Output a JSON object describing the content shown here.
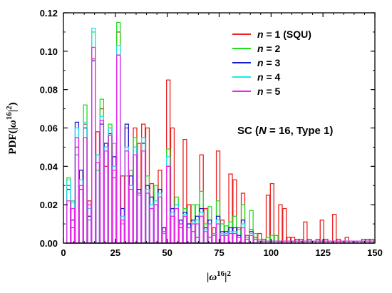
{
  "chart_data": {
    "type": "bar",
    "xlabel_parts": [
      "|",
      "ω",
      "16",
      "|",
      "2"
    ],
    "ylabel_parts": [
      "PDF(|",
      "ω",
      "16",
      "|",
      "2",
      ")"
    ],
    "xlim": [
      0,
      150
    ],
    "ylim": [
      0,
      0.12
    ],
    "xticks": [
      0,
      25,
      50,
      75,
      100,
      125,
      150
    ],
    "xtick_labels": [
      "0",
      "25",
      "50",
      "75",
      "100",
      "125",
      "150"
    ],
    "yticks": [
      0.0,
      0.02,
      0.04,
      0.06,
      0.08,
      0.1,
      0.12
    ],
    "ytick_labels": [
      "0.00",
      "0.02",
      "0.04",
      "0.06",
      "0.08",
      "0.10",
      "0.12"
    ],
    "grid": false,
    "legend_position": "top-right",
    "annotation": {
      "prefix": "SC (",
      "italic": "N",
      "suffix": " = 16, Type 1)"
    },
    "x": [
      2.5,
      4.5,
      6.5,
      8.5,
      10.5,
      12.5,
      14.5,
      16.5,
      18.5,
      20.5,
      22.5,
      24.5,
      26.5,
      28.5,
      30.5,
      32.5,
      34.5,
      36.5,
      38.5,
      40.5,
      42.5,
      44.5,
      46.5,
      48.5,
      50.5,
      52.5,
      54.5,
      56.5,
      58.5,
      60.5,
      62.5,
      64.5,
      66.5,
      68.5,
      70.5,
      72.5,
      74.5,
      76.5,
      78.5,
      80.5,
      82.5,
      84.5,
      86.5,
      88.5,
      90.5,
      92.5,
      94.5,
      96.5,
      98.5,
      100.5,
      102.5,
      104.5,
      106.5,
      108.5,
      110.5,
      112.5,
      114.5,
      116.5,
      118.5,
      120.5,
      122.5,
      124.5,
      126.5,
      128.5,
      130.5,
      132.5,
      134.5,
      136.5,
      138.5,
      140.5,
      142.5,
      144.5,
      146.5,
      148.5
    ],
    "series": [
      {
        "name": "n = 1 (SQU)",
        "label_italic": "n",
        "label_rest": " = 1 (SQU)",
        "color": "#e8201e",
        "values": [
          0.03,
          0.008,
          0.05,
          0.028,
          0.062,
          0.022,
          0.096,
          0.058,
          0.07,
          0.04,
          0.06,
          0.034,
          0.11,
          0.035,
          0.06,
          0.03,
          0.06,
          0.052,
          0.062,
          0.06,
          0.031,
          0.02,
          0.038,
          0.008,
          0.085,
          0.06,
          0.02,
          0.008,
          0.054,
          0.02,
          0.006,
          0.003,
          0.046,
          0.018,
          0.003,
          0.008,
          0.048,
          0.012,
          0.005,
          0.036,
          0.033,
          0.008,
          0.026,
          0.004,
          0.007,
          0.003,
          0.005,
          0.002,
          0.025,
          0.031,
          0.004,
          0.02,
          0.018,
          0.003,
          0.003,
          0.002,
          0.002,
          0.011,
          0.002,
          0.001,
          0.002,
          0.012,
          0.002,
          0.001,
          0.015,
          0.002,
          0.001,
          0.003,
          0.001,
          0.001,
          0.001,
          0.002,
          0.002,
          0.002
        ]
      },
      {
        "name": "n = 2",
        "label_italic": "n",
        "label_rest": " = 2",
        "color": "#22dd22",
        "values": [
          0.034,
          0.022,
          0.046,
          0.038,
          0.072,
          0.012,
          0.11,
          0.038,
          0.075,
          0.05,
          0.062,
          0.052,
          0.115,
          0.01,
          0.035,
          0.038,
          0.055,
          0.025,
          0.055,
          0.035,
          0.018,
          0.03,
          0.028,
          0.005,
          0.049,
          0.018,
          0.024,
          0.012,
          0.018,
          0.01,
          0.02,
          0.02,
          0.027,
          0.01,
          0.019,
          0.005,
          0.022,
          0.01,
          0.009,
          0.011,
          0.014,
          0.007,
          0.02,
          0.003,
          0.017,
          0.005,
          0.002,
          0.001,
          0.003,
          0.004,
          0.004,
          0.001,
          0.001,
          0.001,
          0.001,
          0.001,
          0.001,
          0.001,
          0.001,
          0.001,
          0.001,
          0.001,
          0.001,
          0.001,
          0.001,
          0.001,
          0.001,
          0.001,
          0.001,
          0.001,
          0.001,
          0.001,
          0.001,
          0.001
        ]
      },
      {
        "name": "n = 3",
        "label_italic": "n",
        "label_rest": " = 3",
        "color": "#1a1ad0",
        "values": [
          0.028,
          0.012,
          0.063,
          0.038,
          0.06,
          0.014,
          0.095,
          0.046,
          0.062,
          0.052,
          0.057,
          0.045,
          0.098,
          0.018,
          0.062,
          0.035,
          0.05,
          0.028,
          0.052,
          0.03,
          0.024,
          0.02,
          0.028,
          0.008,
          0.04,
          0.018,
          0.02,
          0.012,
          0.016,
          0.01,
          0.012,
          0.014,
          0.018,
          0.008,
          0.012,
          0.004,
          0.014,
          0.006,
          0.006,
          0.008,
          0.008,
          0.004,
          0.012,
          0.002,
          0.006,
          0.002,
          0.001,
          0.001,
          0.001,
          0.001,
          0.001,
          0.001,
          0.001,
          0.001,
          0.001,
          0.001,
          0.001,
          0.001,
          0.001,
          0.001,
          0.001,
          0.001,
          0.001,
          0.001,
          0.001,
          0.001,
          0.001,
          0.001,
          0.001,
          0.001,
          0.001,
          0.001,
          0.001,
          0.001
        ]
      },
      {
        "name": "n = 4",
        "label_italic": "n",
        "label_rest": " = 4",
        "color": "#22e6e6",
        "values": [
          0.033,
          0.021,
          0.06,
          0.033,
          0.063,
          0.018,
          0.112,
          0.046,
          0.066,
          0.05,
          0.06,
          0.04,
          0.103,
          0.014,
          0.05,
          0.03,
          0.05,
          0.026,
          0.055,
          0.028,
          0.02,
          0.022,
          0.026,
          0.006,
          0.045,
          0.016,
          0.02,
          0.01,
          0.015,
          0.008,
          0.011,
          0.012,
          0.016,
          0.007,
          0.01,
          0.004,
          0.012,
          0.005,
          0.005,
          0.006,
          0.006,
          0.003,
          0.01,
          0.002,
          0.005,
          0.002,
          0.001,
          0.001,
          0.001,
          0.001,
          0.001,
          0.001,
          0.001,
          0.001,
          0.001,
          0.001,
          0.001,
          0.001,
          0.001,
          0.001,
          0.001,
          0.001,
          0.001,
          0.001,
          0.001,
          0.001,
          0.001,
          0.001,
          0.001,
          0.001,
          0.001,
          0.001,
          0.001,
          0.001
        ]
      },
      {
        "name": "n = 5",
        "label_italic": "n",
        "label_rest": " = 5",
        "color": "#ee22ee",
        "values": [
          0.022,
          0.018,
          0.055,
          0.03,
          0.055,
          0.02,
          0.102,
          0.042,
          0.064,
          0.048,
          0.056,
          0.038,
          0.098,
          0.012,
          0.048,
          0.028,
          0.046,
          0.026,
          0.048,
          0.026,
          0.018,
          0.02,
          0.024,
          0.006,
          0.04,
          0.014,
          0.018,
          0.01,
          0.014,
          0.008,
          0.01,
          0.01,
          0.014,
          0.006,
          0.01,
          0.004,
          0.01,
          0.004,
          0.004,
          0.005,
          0.005,
          0.003,
          0.008,
          0.002,
          0.004,
          0.002,
          0.001,
          0.001,
          0.001,
          0.001,
          0.001,
          0.001,
          0.001,
          0.001,
          0.001,
          0.001,
          0.001,
          0.001,
          0.001,
          0.001,
          0.001,
          0.001,
          0.001,
          0.001,
          0.001,
          0.001,
          0.001,
          0.001,
          0.001,
          0.001,
          0.001,
          0.001,
          0.001,
          0.001
        ]
      }
    ]
  }
}
